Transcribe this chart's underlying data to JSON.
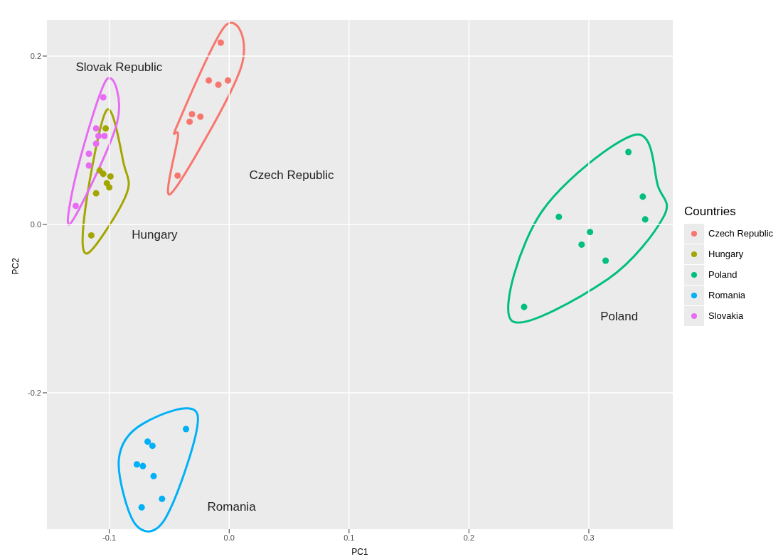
{
  "chart_data": {
    "type": "scatter",
    "xlabel": "PC1",
    "ylabel": "PC2",
    "legend_title": "Countries",
    "xlim": [
      -0.152,
      0.37
    ],
    "ylim": [
      -0.362,
      0.243
    ],
    "xticks": [
      -0.1,
      {
        "value": 0,
        "label": "0.0"
      },
      0.1,
      0.2,
      0.3
    ],
    "yticks": [
      -0.2,
      {
        "value": 0,
        "label": "0.0"
      },
      0.2
    ],
    "grid": true,
    "legend": "right",
    "marker": "circle",
    "series": [
      {
        "name": "Czech Republic",
        "color": "#f8766d",
        "x": [
          -0.007,
          -0.017,
          -0.009,
          -0.001,
          -0.031,
          -0.033,
          -0.024,
          -0.043
        ],
        "values": [
          0.216,
          0.171,
          0.166,
          0.171,
          0.131,
          0.122,
          0.128,
          0.058
        ]
      },
      {
        "name": "Hungary",
        "color": "#a3a500",
        "x": [
          -0.103,
          -0.108,
          -0.105,
          -0.099,
          -0.102,
          -0.1,
          -0.111,
          -0.115
        ],
        "values": [
          0.114,
          0.064,
          0.06,
          0.057,
          0.049,
          0.044,
          0.037,
          -0.013
        ]
      },
      {
        "name": "Poland",
        "color": "#00bf7d",
        "x": [
          0.333,
          0.345,
          0.347,
          0.275,
          0.301,
          0.294,
          0.314,
          0.246
        ],
        "values": [
          0.086,
          0.033,
          0.006,
          0.009,
          -0.009,
          -0.024,
          -0.043,
          -0.098
        ]
      },
      {
        "name": "Romania",
        "color": "#00b0f6",
        "x": [
          -0.036,
          -0.068,
          -0.064,
          -0.077,
          -0.072,
          -0.063,
          -0.056,
          -0.073
        ],
        "values": [
          -0.243,
          -0.258,
          -0.263,
          -0.285,
          -0.287,
          -0.299,
          -0.326,
          -0.336
        ]
      },
      {
        "name": "Slovakia",
        "color": "#e76bf3",
        "x": [
          -0.105,
          -0.111,
          -0.109,
          -0.104,
          -0.111,
          -0.117,
          -0.117,
          -0.128
        ],
        "values": [
          0.151,
          0.114,
          0.105,
          0.105,
          0.096,
          0.084,
          0.07,
          0.022
        ]
      }
    ],
    "annotations": [
      "Czech Republic",
      "Hungary",
      "Poland",
      "Romania",
      "Slovak Republic"
    ]
  }
}
